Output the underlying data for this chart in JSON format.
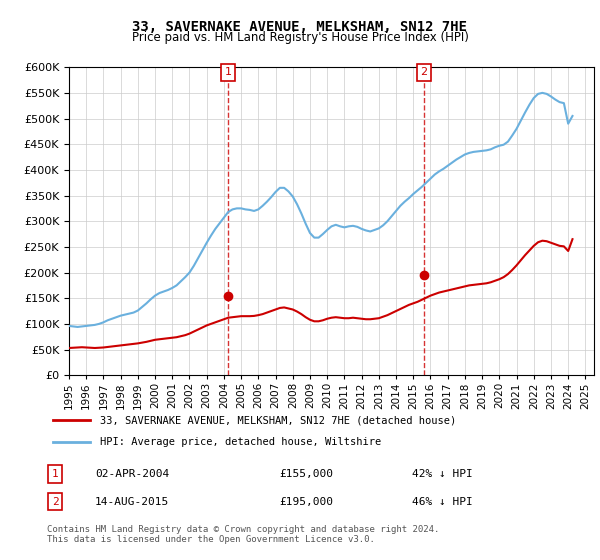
{
  "title": "33, SAVERNAKE AVENUE, MELKSHAM, SN12 7HE",
  "subtitle": "Price paid vs. HM Land Registry's House Price Index (HPI)",
  "ylabel_values": [
    "£0",
    "£50K",
    "£100K",
    "£150K",
    "£200K",
    "£250K",
    "£300K",
    "£350K",
    "£400K",
    "£450K",
    "£500K",
    "£550K",
    "£600K"
  ],
  "ylim": [
    0,
    600000
  ],
  "yticks": [
    0,
    50000,
    100000,
    150000,
    200000,
    250000,
    300000,
    350000,
    400000,
    450000,
    500000,
    550000,
    600000
  ],
  "hpi_color": "#6ab0de",
  "price_color": "#cc0000",
  "marker1_date_x": 2004.25,
  "marker2_date_x": 2015.62,
  "purchase1": {
    "date": "02-APR-2004",
    "price": 155000,
    "pct": "42% ↓ HPI"
  },
  "purchase2": {
    "date": "14-AUG-2015",
    "price": 195000,
    "pct": "46% ↓ HPI"
  },
  "legend_line1": "33, SAVERNAKE AVENUE, MELKSHAM, SN12 7HE (detached house)",
  "legend_line2": "HPI: Average price, detached house, Wiltshire",
  "footnote": "Contains HM Land Registry data © Crown copyright and database right 2024.\nThis data is licensed under the Open Government Licence v3.0.",
  "background_color": "#ffffff",
  "hpi_data": {
    "years": [
      1995.0,
      1995.25,
      1995.5,
      1995.75,
      1996.0,
      1996.25,
      1996.5,
      1996.75,
      1997.0,
      1997.25,
      1997.5,
      1997.75,
      1998.0,
      1998.25,
      1998.5,
      1998.75,
      1999.0,
      1999.25,
      1999.5,
      1999.75,
      2000.0,
      2000.25,
      2000.5,
      2000.75,
      2001.0,
      2001.25,
      2001.5,
      2001.75,
      2002.0,
      2002.25,
      2002.5,
      2002.75,
      2003.0,
      2003.25,
      2003.5,
      2003.75,
      2004.0,
      2004.25,
      2004.5,
      2004.75,
      2005.0,
      2005.25,
      2005.5,
      2005.75,
      2006.0,
      2006.25,
      2006.5,
      2006.75,
      2007.0,
      2007.25,
      2007.5,
      2007.75,
      2008.0,
      2008.25,
      2008.5,
      2008.75,
      2009.0,
      2009.25,
      2009.5,
      2009.75,
      2010.0,
      2010.25,
      2010.5,
      2010.75,
      2011.0,
      2011.25,
      2011.5,
      2011.75,
      2012.0,
      2012.25,
      2012.5,
      2012.75,
      2013.0,
      2013.25,
      2013.5,
      2013.75,
      2014.0,
      2014.25,
      2014.5,
      2014.75,
      2015.0,
      2015.25,
      2015.5,
      2015.75,
      2016.0,
      2016.25,
      2016.5,
      2016.75,
      2017.0,
      2017.25,
      2017.5,
      2017.75,
      2018.0,
      2018.25,
      2018.5,
      2018.75,
      2019.0,
      2019.25,
      2019.5,
      2019.75,
      2020.0,
      2020.25,
      2020.5,
      2020.75,
      2021.0,
      2021.25,
      2021.5,
      2021.75,
      2022.0,
      2022.25,
      2022.5,
      2022.75,
      2023.0,
      2023.25,
      2023.5,
      2023.75,
      2024.0,
      2024.25
    ],
    "values": [
      96000,
      95000,
      94000,
      95000,
      96000,
      97000,
      98000,
      100000,
      103000,
      107000,
      110000,
      113000,
      116000,
      118000,
      120000,
      122000,
      126000,
      133000,
      140000,
      148000,
      155000,
      160000,
      163000,
      166000,
      170000,
      175000,
      183000,
      191000,
      200000,
      213000,
      228000,
      243000,
      258000,
      272000,
      285000,
      296000,
      307000,
      318000,
      323000,
      325000,
      325000,
      323000,
      322000,
      320000,
      323000,
      330000,
      338000,
      347000,
      357000,
      365000,
      365000,
      358000,
      348000,
      333000,
      315000,
      295000,
      277000,
      268000,
      268000,
      275000,
      283000,
      290000,
      293000,
      290000,
      288000,
      290000,
      291000,
      289000,
      285000,
      282000,
      280000,
      283000,
      286000,
      292000,
      300000,
      310000,
      320000,
      330000,
      338000,
      345000,
      353000,
      360000,
      367000,
      375000,
      383000,
      391000,
      397000,
      402000,
      408000,
      414000,
      420000,
      425000,
      430000,
      433000,
      435000,
      436000,
      437000,
      438000,
      440000,
      444000,
      447000,
      449000,
      455000,
      467000,
      480000,
      496000,
      512000,
      527000,
      540000,
      548000,
      550000,
      548000,
      543000,
      537000,
      532000,
      530000,
      490000,
      505000
    ]
  },
  "price_data": {
    "years": [
      1995.0,
      1995.25,
      1995.5,
      1995.75,
      1996.0,
      1996.25,
      1996.5,
      1996.75,
      1997.0,
      1997.25,
      1997.5,
      1997.75,
      1998.0,
      1998.25,
      1998.5,
      1998.75,
      1999.0,
      1999.25,
      1999.5,
      1999.75,
      2000.0,
      2000.25,
      2000.5,
      2000.75,
      2001.0,
      2001.25,
      2001.5,
      2001.75,
      2002.0,
      2002.25,
      2002.5,
      2002.75,
      2003.0,
      2003.25,
      2003.5,
      2003.75,
      2004.0,
      2004.25,
      2004.5,
      2004.75,
      2005.0,
      2005.25,
      2005.5,
      2005.75,
      2006.0,
      2006.25,
      2006.5,
      2006.75,
      2007.0,
      2007.25,
      2007.5,
      2007.75,
      2008.0,
      2008.25,
      2008.5,
      2008.75,
      2009.0,
      2009.25,
      2009.5,
      2009.75,
      2010.0,
      2010.25,
      2010.5,
      2010.75,
      2011.0,
      2011.25,
      2011.5,
      2011.75,
      2012.0,
      2012.25,
      2012.5,
      2012.75,
      2013.0,
      2013.25,
      2013.5,
      2013.75,
      2014.0,
      2014.25,
      2014.5,
      2014.75,
      2015.0,
      2015.25,
      2015.5,
      2015.75,
      2016.0,
      2016.25,
      2016.5,
      2016.75,
      2017.0,
      2017.25,
      2017.5,
      2017.75,
      2018.0,
      2018.25,
      2018.5,
      2018.75,
      2019.0,
      2019.25,
      2019.5,
      2019.75,
      2020.0,
      2020.25,
      2020.5,
      2020.75,
      2021.0,
      2021.25,
      2021.5,
      2021.75,
      2022.0,
      2022.25,
      2022.5,
      2022.75,
      2023.0,
      2023.25,
      2023.5,
      2023.75,
      2024.0,
      2024.25
    ],
    "values": [
      53000,
      53500,
      54000,
      54500,
      54000,
      53500,
      53000,
      53500,
      54000,
      55000,
      56000,
      57000,
      58000,
      59000,
      60000,
      61000,
      62000,
      63500,
      65000,
      67000,
      69000,
      70000,
      71000,
      72000,
      73000,
      74000,
      76000,
      78000,
      81000,
      85000,
      89000,
      93000,
      97000,
      100000,
      103000,
      106000,
      109000,
      112000,
      113000,
      114000,
      115000,
      115000,
      115000,
      115500,
      117000,
      119000,
      122000,
      125000,
      128000,
      131000,
      132000,
      130000,
      128000,
      124000,
      119000,
      113000,
      108000,
      105000,
      105000,
      107000,
      110000,
      112000,
      113000,
      112000,
      111000,
      111000,
      112000,
      111000,
      110000,
      109000,
      109000,
      110000,
      111000,
      114000,
      117000,
      121000,
      125000,
      129000,
      133000,
      137000,
      140000,
      143000,
      147000,
      151000,
      155000,
      158000,
      161000,
      163000,
      165000,
      167000,
      169000,
      171000,
      173000,
      175000,
      176000,
      177000,
      178000,
      179000,
      181000,
      184000,
      187000,
      191000,
      197000,
      205000,
      214000,
      224000,
      234000,
      243000,
      252000,
      259000,
      262000,
      261000,
      258000,
      255000,
      252000,
      251000,
      242000,
      265000
    ]
  },
  "xtick_years": [
    1995,
    1996,
    1997,
    1998,
    1999,
    2000,
    2001,
    2002,
    2003,
    2004,
    2005,
    2006,
    2007,
    2008,
    2009,
    2010,
    2011,
    2012,
    2013,
    2014,
    2015,
    2016,
    2017,
    2018,
    2019,
    2020,
    2021,
    2022,
    2023,
    2024,
    2025
  ]
}
